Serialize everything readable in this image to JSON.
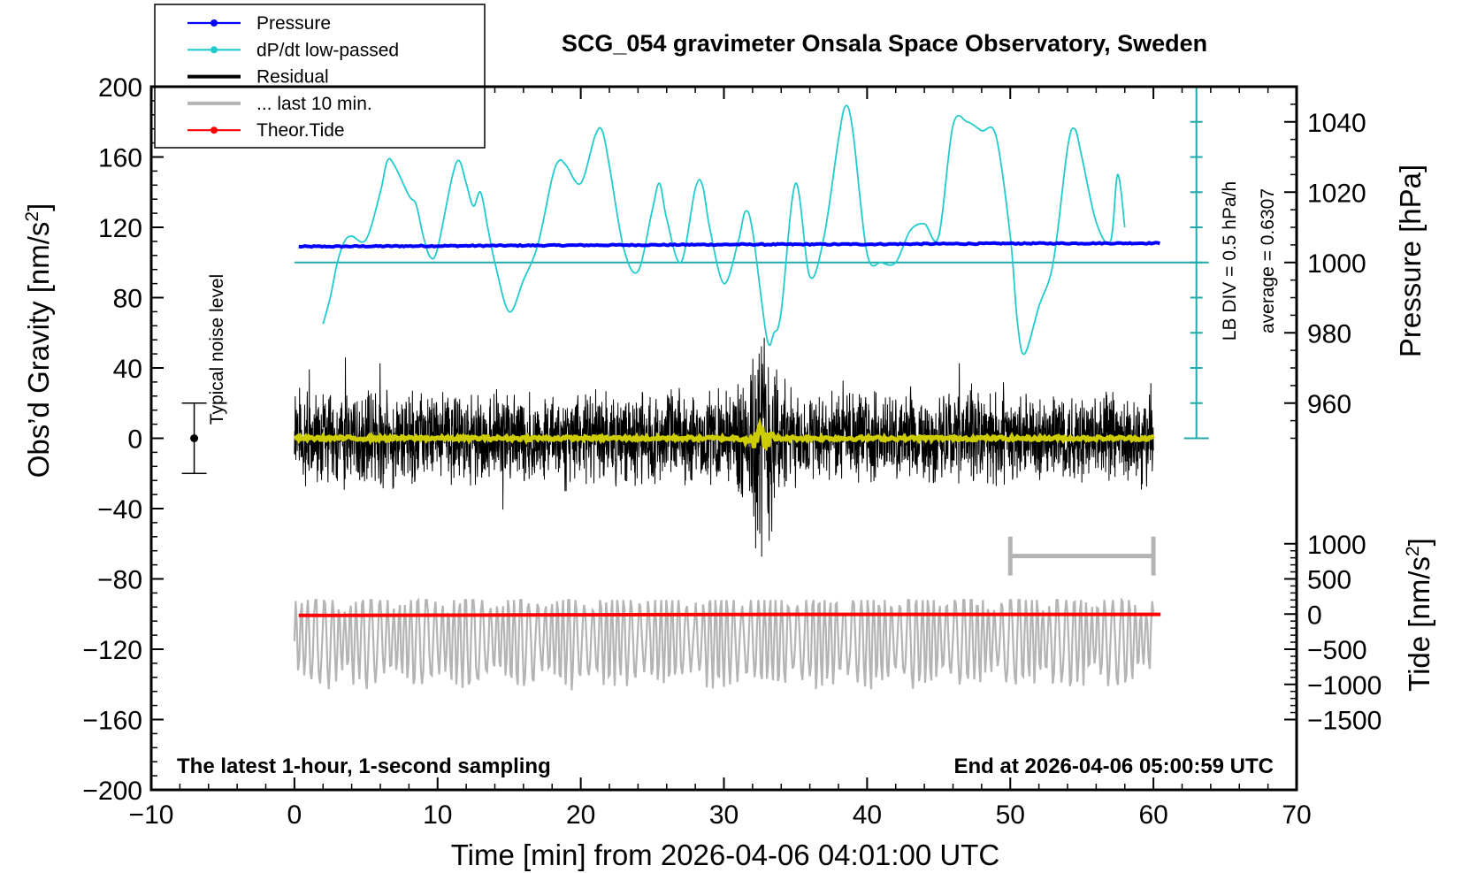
{
  "chart_data": {
    "type": "line",
    "title": "SCG_054 gravimeter Onsala Space Observatory, Sweden",
    "footer_left": "The latest 1-hour, 1-second sampling",
    "footer_right": "End at 2026-04-06 05:00:59 UTC",
    "x_axis": {
      "label": "Time [min] from 2026-04-06 04:01:00 UTC",
      "range": [
        -10,
        70
      ],
      "ticks": [
        -10,
        0,
        10,
        20,
        30,
        40,
        50,
        60,
        70
      ],
      "tick_labels": [
        "−10",
        "0",
        "10",
        "20",
        "30",
        "40",
        "50",
        "60",
        "70"
      ]
    },
    "y_axis_left": {
      "label": "Obs’d Gravity [nm/s²]",
      "range": [
        -200,
        200
      ],
      "ticks": [
        -200,
        -160,
        -120,
        -80,
        -40,
        0,
        40,
        80,
        120,
        160,
        200
      ],
      "tick_labels": [
        "−200",
        "−160",
        "−120",
        "−80",
        "−40",
        "0",
        "40",
        "80",
        "120",
        "160",
        "200"
      ]
    },
    "y_axis_pressure": {
      "label": "Pressure [hPa]",
      "ticks": [
        960,
        980,
        1000,
        1020,
        1040
      ],
      "tick_labels": [
        "960",
        "980",
        "1000",
        "1020",
        "1040"
      ],
      "grav_equiv_of_1000_hPa": 100,
      "grav_units_per_hPa": 2
    },
    "y_axis_tide": {
      "label": "Tide [nm/s²]",
      "ticks": [
        -1500,
        -1000,
        -500,
        0,
        500,
        1000
      ],
      "tick_labels": [
        "−1500",
        "−1000",
        "−500",
        "0",
        "500",
        "1000"
      ],
      "grav_equiv_of_0": -100,
      "grav_units_per_tide_unit": 0.04
    },
    "dpdt_scale": {
      "label": "LB DIV = 0.5 hPa/h",
      "average_label": "average = 0.6307",
      "x_min": 63,
      "range": [
        0,
        200
      ],
      "baseline": 100,
      "divisions": 10
    },
    "noise_bar": {
      "label": "Typical noise level",
      "x": -7,
      "center": 0,
      "low": -20,
      "high": 20
    },
    "last_10_min_bar": {
      "x_start": 50,
      "x_end": 60,
      "level": -67
    },
    "legend": [
      {
        "label": "Pressure",
        "color": "#0000ff",
        "marker": true
      },
      {
        "label": "dP/dt low-passed",
        "color": "#22cccc",
        "marker": true
      },
      {
        "label": "Residual",
        "color": "#000000",
        "marker": false
      },
      {
        "label": "... last 10 min.",
        "color": "#b4b4b4",
        "marker": false
      },
      {
        "label": "Theor.Tide",
        "color": "#ff0000",
        "marker": true
      }
    ],
    "series": [
      {
        "name": "Pressure",
        "color": "#0000ff",
        "x": [
          0.3,
          10,
          20,
          30,
          40,
          50,
          60.5
        ],
        "values": [
          1004.5,
          1004.7,
          1004.9,
          1005.1,
          1005.2,
          1005.4,
          1005.5
        ]
      },
      {
        "name": "dP/dt low-passed",
        "color": "#22cccc",
        "x": [
          2,
          2.5,
          3,
          3.5,
          4,
          5,
          6,
          6.5,
          7,
          8,
          8.5,
          9,
          9.5,
          10,
          11,
          11.5,
          12,
          12.5,
          13,
          13.5,
          14,
          15,
          16,
          17,
          18,
          18.5,
          19,
          20,
          21,
          21.5,
          22,
          23,
          24,
          25,
          25.5,
          26,
          27,
          28,
          28.5,
          29,
          30,
          31,
          31.5,
          32,
          33,
          33.5,
          34,
          35,
          36,
          37,
          38,
          38.5,
          39,
          40,
          41,
          42,
          43,
          44,
          45,
          46,
          47,
          48,
          49,
          50,
          50.5,
          51,
          52,
          53,
          54,
          54.5,
          55,
          56,
          57,
          57.5,
          58
        ],
        "values": [
          65,
          80,
          100,
          112,
          115,
          113,
          140,
          158,
          155,
          138,
          133,
          115,
          103,
          108,
          148,
          158,
          145,
          132,
          140,
          120,
          100,
          72,
          90,
          110,
          148,
          158,
          155,
          145,
          172,
          175,
          155,
          108,
          95,
          130,
          145,
          125,
          100,
          142,
          144,
          120,
          88,
          112,
          129,
          118,
          57,
          60,
          72,
          145,
          92,
          115,
          170,
          189,
          175,
          105,
          100,
          100,
          118,
          122,
          115,
          178,
          180,
          175,
          172,
          115,
          66,
          48,
          75,
          100,
          165,
          176,
          160,
          123,
          112,
          150,
          120
        ]
      },
      {
        "name": "Residual",
        "color": "#000000",
        "x_range": [
          0,
          60
        ],
        "typical_amplitude": 30,
        "peak_min": -78,
        "peak_max": 80,
        "peak_time": 32.5
      },
      {
        "name": "Residual smoothed",
        "color": "#cccc00",
        "x_range": [
          0,
          60
        ],
        "value": 0
      },
      {
        "name": "... last 10 min.",
        "color": "#b4b4b4",
        "x_range": [
          0,
          60
        ],
        "center": -114,
        "min": -160,
        "max": -92
      },
      {
        "name": "Theor.Tide",
        "color": "#ff0000",
        "x": [
          0.3,
          10,
          20,
          30,
          40,
          50,
          60.5
        ],
        "values": [
          -20,
          -16,
          -11,
          -6,
          -4,
          -4,
          -5
        ]
      }
    ]
  }
}
